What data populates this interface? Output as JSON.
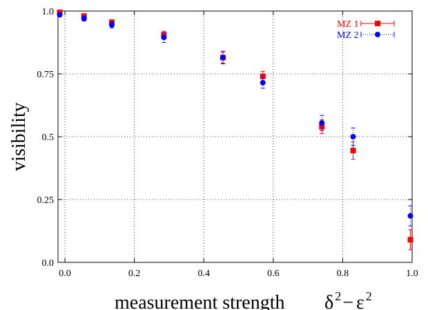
{
  "chart_data": {
    "type": "scatter",
    "xlabel": "measurement strength",
    "xlabel_math": {
      "base1": "δ",
      "sup1": "2",
      "minus": "−",
      "base2": "ε",
      "sup2": "2"
    },
    "ylabel": "visibility",
    "xlim": [
      -0.02,
      1.0
    ],
    "ylim": [
      0.0,
      1.0
    ],
    "x_ticks": [
      0.0,
      0.2,
      0.4,
      0.6,
      0.8,
      1.0
    ],
    "x_tick_labels": [
      "0.0",
      "0.2",
      "0.4",
      "0.6",
      "0.8",
      "1.0"
    ],
    "y_ticks": [
      0.0,
      0.25,
      0.5,
      0.75,
      1.0
    ],
    "y_tick_labels": [
      "0.0",
      "0.25",
      "0.5",
      "0.75",
      "1.0"
    ],
    "grid": true,
    "legend_position": "top-right",
    "series": [
      {
        "name": "MZ 1",
        "color": "#ff0000",
        "marker": "square",
        "line_style": "solid",
        "points": [
          {
            "x": -0.015,
            "y": 0.995,
            "err": 0.005
          },
          {
            "x": 0.055,
            "y": 0.98,
            "err": 0.008
          },
          {
            "x": 0.135,
            "y": 0.955,
            "err": 0.01
          },
          {
            "x": 0.285,
            "y": 0.905,
            "err": 0.015
          },
          {
            "x": 0.455,
            "y": 0.815,
            "err": 0.022
          },
          {
            "x": 0.57,
            "y": 0.74,
            "err": 0.02
          },
          {
            "x": 0.74,
            "y": 0.54,
            "err": 0.028
          },
          {
            "x": 0.83,
            "y": 0.445,
            "err": 0.035
          },
          {
            "x": 0.995,
            "y": 0.09,
            "err": 0.04
          }
        ]
      },
      {
        "name": "MZ 2",
        "color": "#0000ff",
        "marker": "circle",
        "line_style": "dotted",
        "points": [
          {
            "x": -0.015,
            "y": 0.985,
            "err": 0.008
          },
          {
            "x": 0.055,
            "y": 0.97,
            "err": 0.01
          },
          {
            "x": 0.135,
            "y": 0.945,
            "err": 0.012
          },
          {
            "x": 0.285,
            "y": 0.895,
            "err": 0.02
          },
          {
            "x": 0.455,
            "y": 0.815,
            "err": 0.025
          },
          {
            "x": 0.57,
            "y": 0.715,
            "err": 0.022
          },
          {
            "x": 0.74,
            "y": 0.555,
            "err": 0.03
          },
          {
            "x": 0.83,
            "y": 0.5,
            "err": 0.035
          },
          {
            "x": 0.995,
            "y": 0.185,
            "err": 0.04
          }
        ]
      }
    ]
  }
}
